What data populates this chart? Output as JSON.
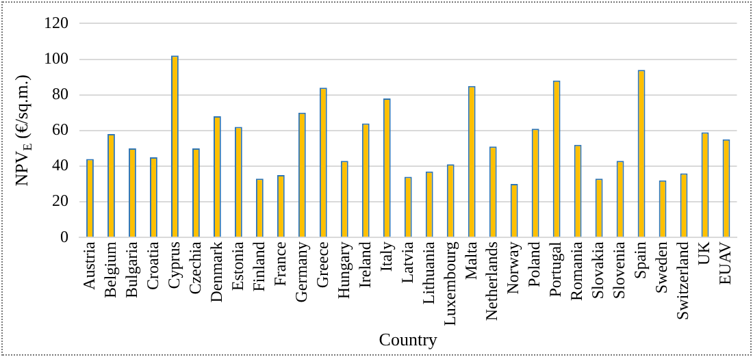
{
  "chart_data": {
    "type": "bar",
    "xlabel": "Country",
    "ylabel": "NPV$_{E}$ (€/sq.m.)",
    "categories": [
      "Austria",
      "Belgium",
      "Bulgaria",
      "Croatia",
      "Cyprus",
      "Czechia",
      "Denmark",
      "Estonia",
      "Finland",
      "France",
      "Germany",
      "Greece",
      "Hungary",
      "Ireland",
      "Italy",
      "Latvia",
      "Lithuania",
      "Luxembourg",
      "Malta",
      "Netherlands",
      "Norway",
      "Poland",
      "Portugal",
      "Romania",
      "Slovakia",
      "Slovenia",
      "Spain",
      "Sweden",
      "Switzerland",
      "UK",
      "EUAV"
    ],
    "values": [
      44,
      58,
      50,
      45,
      102,
      50,
      68,
      62,
      33,
      35,
      70,
      84,
      43,
      64,
      78,
      34,
      37,
      41,
      85,
      51,
      30,
      61,
      88,
      52,
      33,
      43,
      94,
      32,
      36,
      59,
      55
    ],
    "color": "#ffc000",
    "ylim": [
      0,
      120
    ],
    "yticks": [
      0,
      20,
      40,
      60,
      80,
      100,
      120
    ],
    "grid": "y",
    "legend": false
  }
}
